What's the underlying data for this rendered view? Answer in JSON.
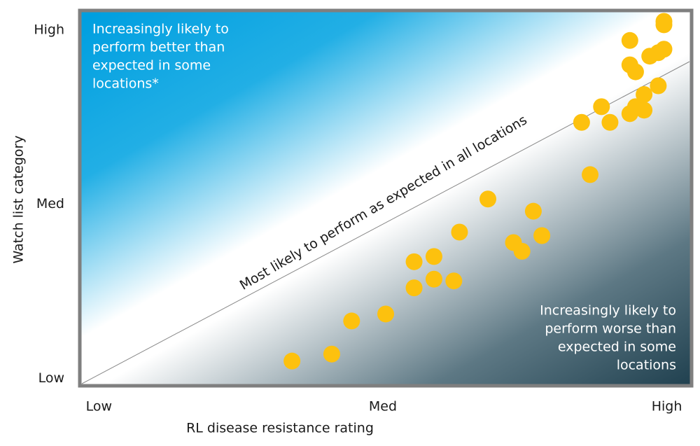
{
  "chart_data": {
    "type": "scatter",
    "x_label": "RL disease resistance rating",
    "y_label": "Watch list category",
    "color": "#fdc10e",
    "xlim": [
      -0.06,
      2.08
    ],
    "ylim": [
      -0.03,
      2.1
    ],
    "xticks": [
      {
        "value": 0,
        "label": "Low"
      },
      {
        "value": 1,
        "label": "Med"
      },
      {
        "value": 2,
        "label": "High"
      }
    ],
    "yticks": [
      {
        "value": 0,
        "label": "Low"
      },
      {
        "value": 1,
        "label": "Med"
      },
      {
        "value": 2,
        "label": "High"
      }
    ],
    "annotations": {
      "upper": [
        "Increasingly likely to",
        "perform better than",
        "expected in some",
        "locations*"
      ],
      "diagonal": "Most likely to perform as expected in all locations",
      "lower": [
        "Increasingly likely to",
        "perform worse than",
        "expected in some",
        "locations"
      ]
    },
    "x": [
      0.68,
      0.82,
      0.89,
      1.01,
      1.11,
      1.18,
      1.11,
      1.18,
      1.25,
      1.27,
      1.37,
      1.46,
      1.49,
      1.53,
      1.56,
      1.73,
      1.7,
      1.77,
      1.8,
      1.87,
      1.89,
      1.92,
      1.92,
      1.97,
      1.87,
      1.89,
      1.94,
      1.97,
      1.99,
      1.87,
      1.99,
      1.99
    ],
    "values": [
      0.1,
      0.14,
      0.33,
      0.37,
      0.67,
      0.7,
      0.52,
      0.57,
      0.56,
      0.84,
      1.03,
      0.78,
      0.73,
      0.96,
      0.82,
      1.17,
      1.47,
      1.56,
      1.47,
      1.52,
      1.56,
      1.54,
      1.63,
      1.68,
      1.8,
      1.76,
      1.85,
      1.87,
      1.89,
      1.94,
      2.05,
      2.03
    ]
  }
}
